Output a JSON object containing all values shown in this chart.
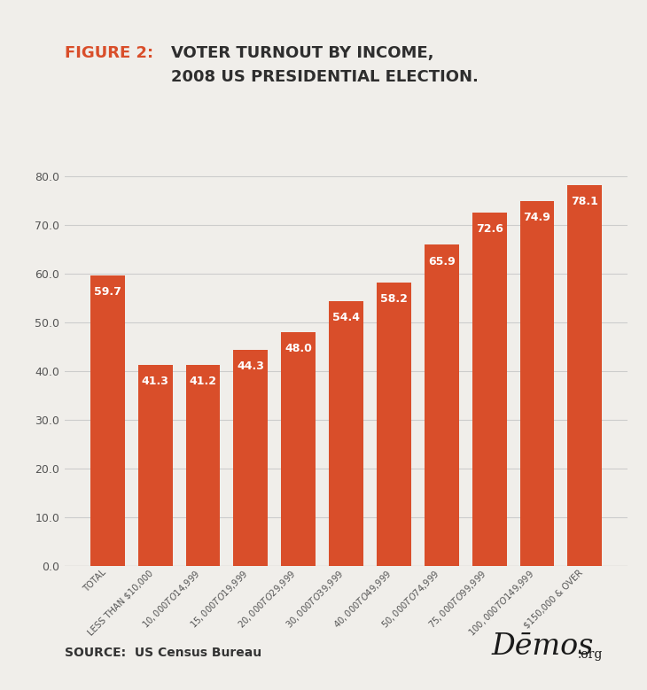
{
  "categories": [
    "TOTAL",
    "LESS THAN $10,000",
    "$10,000 TO $14,999",
    "$15,000 TO $19,999",
    "$20,000 TO $29,999",
    "$30,000 TO $39,999",
    "$40,000 TO $49,999",
    "$50,000 TO $74,999",
    "$75,000 TO $99,999",
    "$100,000 TO $149,999",
    "$150,000 & OVER"
  ],
  "values": [
    59.7,
    41.3,
    41.2,
    44.3,
    48.0,
    54.4,
    58.2,
    65.9,
    72.6,
    74.9,
    78.1
  ],
  "bar_color": "#d94e2a",
  "background_color": "#f0eeea",
  "title_prefix": "FIGURE 2:",
  "title_prefix_color": "#d94e2a",
  "title_color": "#2e2e2e",
  "title_fontsize": 13,
  "ylabel_ticks": [
    0.0,
    10.0,
    20.0,
    30.0,
    40.0,
    50.0,
    60.0,
    70.0,
    80.0
  ],
  "ylim": [
    0,
    85
  ],
  "source_text": "SOURCE:  US Census Bureau",
  "source_fontsize": 10,
  "demos_text": "Dēmos",
  "demos_org": ".org",
  "bar_label_fontsize": 9,
  "bar_label_color": "#ffffff",
  "tick_label_fontsize": 7.2,
  "grid_color": "#cccccc",
  "axis_label_color": "#555555"
}
